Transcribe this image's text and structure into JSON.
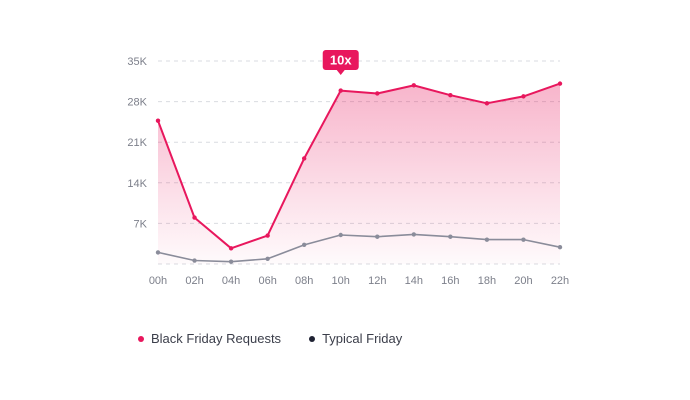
{
  "chart_data": {
    "type": "line",
    "categories": [
      "00h",
      "02h",
      "04h",
      "06h",
      "08h",
      "10h",
      "12h",
      "14h",
      "16h",
      "18h",
      "20h",
      "22h"
    ],
    "y_ticks": [
      "7K",
      "14K",
      "21K",
      "28K",
      "35K"
    ],
    "ylim": [
      0,
      35000
    ],
    "grid": true,
    "legend_position": "bottom-left",
    "series": [
      {
        "name": "Black Friday Requests",
        "color": "#e8175d",
        "area": true,
        "values": [
          24700,
          8000,
          2700,
          4900,
          18200,
          29900,
          29400,
          30800,
          29100,
          27700,
          28900,
          31100
        ]
      },
      {
        "name": "Typical Friday",
        "color": "#1f2233",
        "line_color": "#8a8c9a",
        "values": [
          2000,
          600,
          400,
          900,
          3300,
          5000,
          4700,
          5100,
          4700,
          4200,
          4200,
          2900
        ]
      }
    ],
    "annotation": {
      "text": "10x",
      "category": "10h"
    }
  }
}
